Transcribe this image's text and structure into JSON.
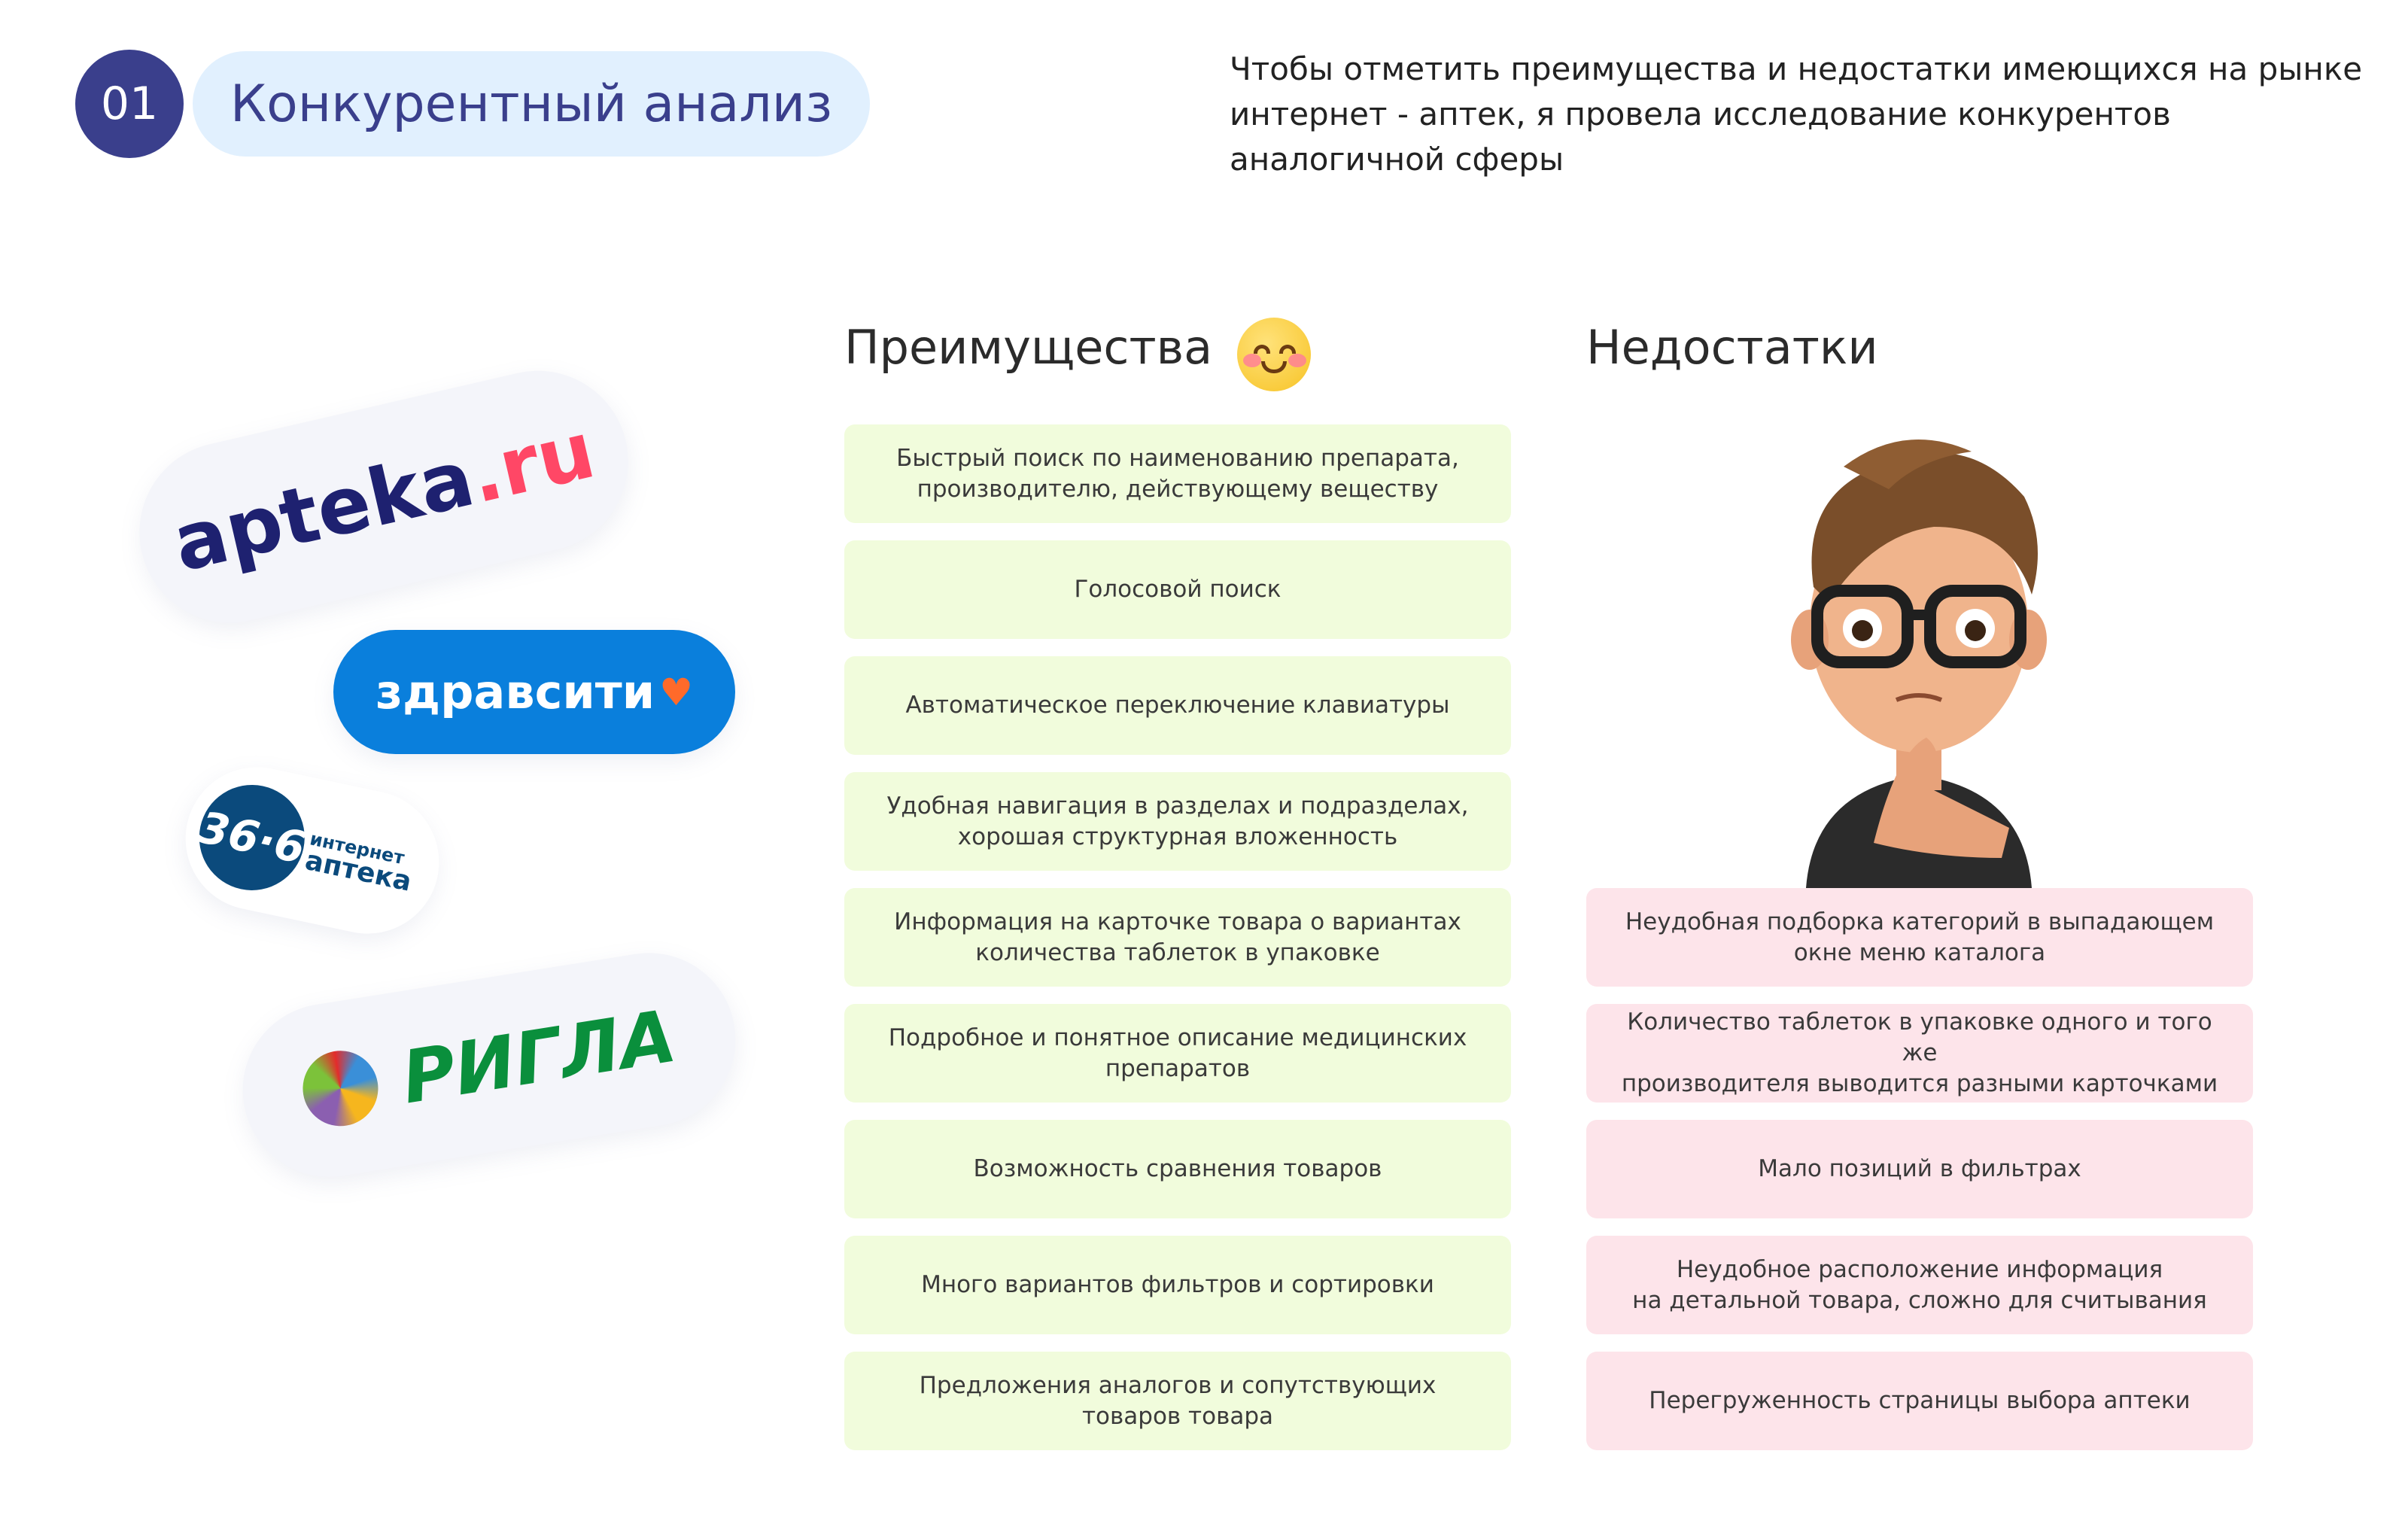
{
  "header": {
    "number": "01",
    "title": "Конкурентный анализ"
  },
  "description": [
    "Чтобы отметить преимущества и недостатки имеющихся на рынке",
    "интернет - аптек, я провела исследование конкурентов",
    "аналогичной сферы"
  ],
  "pros": {
    "heading": "Преимущества",
    "icon": "smiling-face-emoji",
    "items": [
      [
        "Быстрый поиск по наименованию препарата,",
        "производителю, действующему веществу"
      ],
      [
        "Голосовой поиск"
      ],
      [
        "Автоматическое переключение клавиатуры"
      ],
      [
        "Удобная навигация в разделах и подразделах,",
        "хорошая структурная вложенность"
      ],
      [
        "Информация на карточке товара о вариантах",
        "количества таблеток в упаковке"
      ],
      [
        "Подробное и понятное описание медицинских",
        "препаратов"
      ],
      [
        "Возможность сравнения товаров"
      ],
      [
        "Много вариантов фильтров и сортировки"
      ],
      [
        "Предложения аналогов и сопутствующих",
        "товаров товара"
      ]
    ]
  },
  "cons": {
    "heading": "Недостатки",
    "illustration": "thinking-cartoon-man",
    "items": [
      [
        "Неудобная подборка категорий в выпадающем",
        "окне меню каталога"
      ],
      [
        "Количество таблеток в упаковке одного и того же",
        "производителя выводится разными карточками"
      ],
      [
        "Мало позиций в фильтрах"
      ],
      [
        "Неудобное расположение информация",
        "на детальной товара, сложно для считывания"
      ],
      [
        "Перегруженность страницы выбора аптеки"
      ]
    ]
  },
  "logos": {
    "apteka": {
      "main": "apteka",
      ".ru": ".ru"
    },
    "zdravsiti": "здравсити",
    "a366": {
      "num": "36·6",
      "l1": "интернет",
      "l2": "аптека"
    },
    "rigla": "РИГЛА"
  },
  "colors": {
    "navy": "#3a3f8c",
    "pro_bg": "#f1fcdc",
    "con_bg": "#fde4ea",
    "zdravsiti": "#0a7fdc",
    "apteka_red": "#ff4766",
    "rigla_green": "#0a8f3c"
  }
}
